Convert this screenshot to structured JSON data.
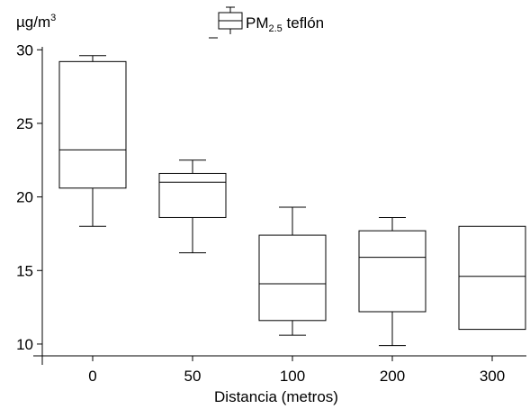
{
  "chart_data": {
    "type": "box",
    "yunit": {
      "base": "µg/m",
      "sup": "3"
    },
    "legend": {
      "base": "PM",
      "sub": "2.5",
      "suffix": " teflón",
      "position": "top-center"
    },
    "xlabel": "Distancia (metros)",
    "categories": [
      "0",
      "50",
      "100",
      "200",
      "300"
    ],
    "ylim": [
      9.2,
      30.2
    ],
    "yticks": [
      10,
      15,
      20,
      25,
      30
    ],
    "grid": false,
    "boxes": [
      {
        "category": "0",
        "min": 18.0,
        "q1": 20.6,
        "median": 23.2,
        "q3": 29.2,
        "max": 29.6
      },
      {
        "category": "50",
        "min": 16.2,
        "q1": 18.6,
        "median": 21.0,
        "q3": 21.6,
        "max": 22.5
      },
      {
        "category": "100",
        "min": 10.6,
        "q1": 11.6,
        "median": 14.1,
        "q3": 17.4,
        "max": 19.3
      },
      {
        "category": "200",
        "min": 9.9,
        "q1": 12.2,
        "median": 15.9,
        "q3": 17.7,
        "max": 18.6
      },
      {
        "category": "300",
        "min": 11.0,
        "q1": 11.0,
        "median": 14.6,
        "q3": 18.0,
        "max": 18.0
      }
    ]
  }
}
